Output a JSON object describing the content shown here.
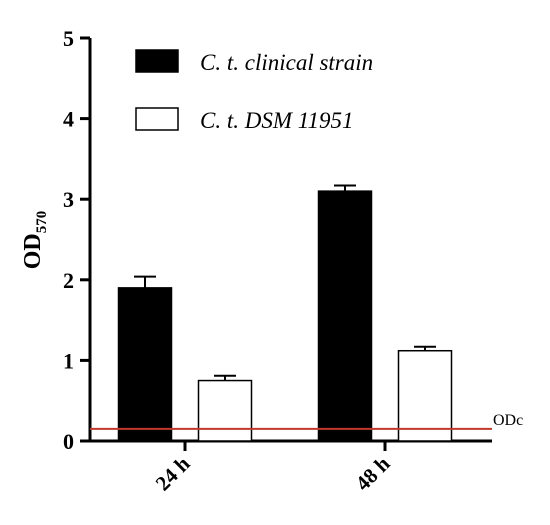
{
  "chart_data": {
    "type": "bar",
    "categories": [
      "24 h",
      "48 h"
    ],
    "series": [
      {
        "name": "C. t. clinical strain",
        "values": [
          1.9,
          3.1
        ],
        "errors": [
          0.14,
          0.07
        ],
        "fill": "#000000"
      },
      {
        "name": "C. t. DSM 11951",
        "values": [
          0.75,
          1.12
        ],
        "errors": [
          0.06,
          0.05
        ],
        "fill": "#ffffff"
      }
    ],
    "ylabel_main": "OD",
    "ylabel_sub": "570",
    "ylim": [
      0,
      5
    ],
    "yticks": [
      "0",
      "1",
      "2",
      "3",
      "4",
      "5"
    ],
    "reference_line": {
      "label": "ODc",
      "value": 0.15,
      "color": "#c0392b"
    },
    "grid": false,
    "legend_position": "top-left"
  }
}
